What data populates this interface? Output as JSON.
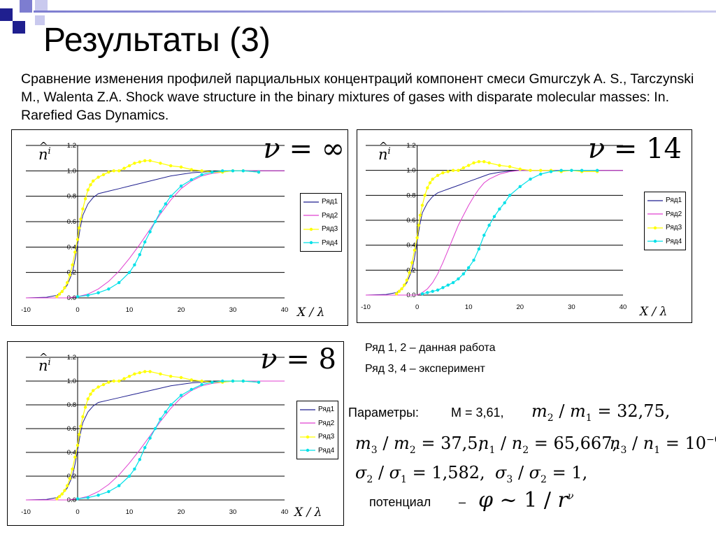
{
  "slide": {
    "title": "Результаты (3)",
    "subtitle": "Сравнение изменения профилей парциальных концентраций компонент смеси Gmurczyk A. S., Tarczynski M., Walenta Z.A.  Shock wave structure in the binary mixtures of gases with disparate molecular masses: In. Rarefied Gas Dynamics.",
    "accent_colors": [
      "#1f1f8f",
      "#7d7dd0",
      "#c9c9ee"
    ]
  },
  "notes": {
    "line1": "Ряд 1, 2  – данная работа",
    "line2": "Ряд 3, 4 – эксперимент"
  },
  "params": {
    "label": "Параметры:",
    "mass": "M = 3,61,",
    "potential_label": "потенциал",
    "dash": "–"
  },
  "chart_data": [
    {
      "type": "line",
      "title": "ν = ∞",
      "nu_symbol": "ν",
      "nu_value": "= ∞",
      "xlabel": "X / λ",
      "ylabel": "n i",
      "xlim": [
        -10,
        40
      ],
      "ylim": [
        0,
        1.2
      ],
      "x_ticks": [
        "-10",
        "0",
        "10",
        "20",
        "30",
        "40"
      ],
      "y_ticks": [
        "0.0",
        "0.2",
        "0.4",
        "0.6",
        "0.8",
        "1.0",
        "1.2"
      ],
      "grid": "horizontal",
      "legend": "right",
      "series": [
        {
          "name": "Ряд1",
          "color": "#1f1f8f",
          "marker": "none",
          "x": [
            -10,
            -6,
            -4,
            -3,
            -2,
            -1,
            -0.5,
            0,
            0.5,
            1,
            2,
            3,
            4,
            6,
            8,
            10,
            14,
            18,
            22,
            26,
            30,
            40
          ],
          "y": [
            0,
            0.005,
            0.02,
            0.05,
            0.1,
            0.2,
            0.3,
            0.42,
            0.55,
            0.65,
            0.74,
            0.79,
            0.82,
            0.84,
            0.86,
            0.88,
            0.92,
            0.96,
            0.985,
            0.995,
            1.0,
            1.0
          ]
        },
        {
          "name": "Ряд2",
          "color": "#e040d0",
          "marker": "none",
          "x": [
            -10,
            -2,
            0,
            2,
            4,
            6,
            8,
            10,
            12,
            14,
            16,
            18,
            20,
            22,
            24,
            26,
            28,
            30,
            34,
            40
          ],
          "y": [
            0,
            0,
            0.01,
            0.03,
            0.07,
            0.13,
            0.21,
            0.31,
            0.42,
            0.54,
            0.66,
            0.77,
            0.86,
            0.92,
            0.96,
            0.98,
            0.99,
            1.0,
            1.0,
            1.0
          ]
        },
        {
          "name": "Ряд3",
          "color": "#ffff00",
          "marker": "dot",
          "x": [
            -4,
            -3.5,
            -3,
            -2.5,
            -2,
            -1.5,
            -1,
            -0.5,
            0,
            0.3,
            0.6,
            1,
            1.5,
            2,
            2.5,
            3,
            4,
            5,
            6,
            7,
            8,
            9,
            10,
            11,
            12,
            13,
            14,
            16,
            18,
            20,
            22,
            24,
            26,
            28,
            30,
            32,
            35
          ],
          "y": [
            0.01,
            0.03,
            0.05,
            0.08,
            0.12,
            0.18,
            0.26,
            0.36,
            0.46,
            0.55,
            0.62,
            0.7,
            0.78,
            0.85,
            0.89,
            0.92,
            0.95,
            0.97,
            0.99,
            1.0,
            1.0,
            1.02,
            1.04,
            1.06,
            1.07,
            1.08,
            1.08,
            1.06,
            1.04,
            1.03,
            1.01,
            1.0,
            0.99,
            0.99,
            1.0,
            1.0,
            0.99
          ]
        },
        {
          "name": "Ряд4",
          "color": "#00e0e8",
          "marker": "dot",
          "x": [
            0,
            2,
            4,
            6,
            8,
            10,
            11,
            12,
            13,
            14,
            15,
            16,
            17,
            18,
            20,
            22,
            24,
            26,
            28,
            30,
            32,
            35
          ],
          "y": [
            0.01,
            0.02,
            0.04,
            0.07,
            0.12,
            0.2,
            0.26,
            0.34,
            0.44,
            0.52,
            0.6,
            0.68,
            0.74,
            0.8,
            0.88,
            0.93,
            0.97,
            0.99,
            1.0,
            1.0,
            1.0,
            0.99
          ]
        }
      ]
    },
    {
      "type": "line",
      "title": "ν = 14",
      "nu_symbol": "ν",
      "nu_value": "= 14",
      "xlabel": "X / λ",
      "ylabel": "n i",
      "xlim": [
        -10,
        40
      ],
      "ylim": [
        0,
        1.2
      ],
      "x_ticks": [
        "-10",
        "0",
        "10",
        "20",
        "30",
        "40"
      ],
      "y_ticks": [
        "0.0",
        "0.2",
        "0.4",
        "0.6",
        "0.8",
        "1.0",
        "1.2"
      ],
      "grid": "horizontal",
      "legend": "right",
      "series": [
        {
          "name": "Ряд1",
          "color": "#1f1f8f",
          "marker": "none",
          "x": [
            -10,
            -6,
            -4,
            -3,
            -2,
            -1,
            -0.5,
            0,
            0.5,
            1,
            2,
            3,
            4,
            6,
            8,
            10,
            12,
            14,
            16,
            18,
            20,
            24,
            30,
            40
          ],
          "y": [
            0,
            0.005,
            0.02,
            0.05,
            0.1,
            0.2,
            0.3,
            0.43,
            0.56,
            0.66,
            0.74,
            0.79,
            0.82,
            0.85,
            0.88,
            0.91,
            0.94,
            0.97,
            0.985,
            0.995,
            1.0,
            1.0,
            1.0,
            1.0
          ]
        },
        {
          "name": "Ряд2",
          "color": "#e040d0",
          "marker": "none",
          "x": [
            -10,
            0,
            1,
            2,
            3,
            4,
            5,
            6,
            7,
            8,
            9,
            10,
            11,
            12,
            13,
            14,
            16,
            18,
            20,
            22,
            26,
            30,
            40
          ],
          "y": [
            0,
            0,
            0.02,
            0.05,
            0.1,
            0.17,
            0.26,
            0.36,
            0.46,
            0.56,
            0.64,
            0.72,
            0.79,
            0.85,
            0.9,
            0.93,
            0.97,
            0.99,
            1.0,
            1.0,
            1.0,
            1.0,
            1.0
          ]
        },
        {
          "name": "Ряд3",
          "color": "#ffff00",
          "marker": "dot",
          "x": [
            -4,
            -3.5,
            -3,
            -2.5,
            -2,
            -1.5,
            -1,
            -0.5,
            0,
            0.3,
            0.6,
            1,
            1.5,
            2,
            2.5,
            3,
            4,
            5,
            6,
            7,
            8,
            9,
            10,
            11,
            12,
            13,
            14,
            16,
            18,
            20,
            22,
            24,
            26,
            28,
            30,
            32,
            35
          ],
          "y": [
            0.01,
            0.03,
            0.05,
            0.08,
            0.12,
            0.18,
            0.26,
            0.36,
            0.46,
            0.56,
            0.64,
            0.72,
            0.8,
            0.86,
            0.9,
            0.93,
            0.96,
            0.98,
            0.99,
            1.0,
            1.0,
            1.02,
            1.04,
            1.06,
            1.07,
            1.07,
            1.06,
            1.04,
            1.03,
            1.01,
            1.0,
            1.0,
            1.0,
            0.99,
            1.0,
            0.99,
            0.99
          ]
        },
        {
          "name": "Ряд4",
          "color": "#00e0e8",
          "marker": "dot",
          "x": [
            1,
            2,
            3,
            4,
            5,
            6,
            7,
            8,
            9,
            10,
            11,
            12,
            13,
            14,
            15,
            16,
            17,
            18,
            20,
            22,
            24,
            26,
            28,
            30,
            32,
            35
          ],
          "y": [
            0.01,
            0.02,
            0.03,
            0.04,
            0.06,
            0.08,
            0.1,
            0.13,
            0.17,
            0.22,
            0.28,
            0.37,
            0.48,
            0.56,
            0.63,
            0.69,
            0.74,
            0.8,
            0.87,
            0.93,
            0.97,
            0.99,
            1.0,
            1.0,
            1.0,
            1.0
          ]
        }
      ]
    },
    {
      "type": "line",
      "title": "ν = 8",
      "nu_symbol": "ν",
      "nu_value": "= 8",
      "xlabel": "X / λ",
      "ylabel": "n i",
      "xlim": [
        -10,
        40
      ],
      "ylim": [
        0,
        1.2
      ],
      "x_ticks": [
        "-10",
        "0",
        "10",
        "20",
        "30",
        "40"
      ],
      "y_ticks": [
        "0.0",
        "0.2",
        "0.4",
        "0.6",
        "0.8",
        "1.0",
        "1.2"
      ],
      "grid": "horizontal",
      "legend": "right",
      "series": [
        {
          "name": "Ряд1",
          "color": "#1f1f8f",
          "marker": "none",
          "x": [
            -10,
            -6,
            -4,
            -3,
            -2,
            -1,
            -0.5,
            0,
            0.5,
            1,
            2,
            3,
            4,
            6,
            8,
            10,
            14,
            18,
            22,
            26,
            30,
            40
          ],
          "y": [
            0,
            0.005,
            0.02,
            0.05,
            0.1,
            0.2,
            0.3,
            0.42,
            0.55,
            0.65,
            0.74,
            0.79,
            0.82,
            0.84,
            0.86,
            0.88,
            0.92,
            0.96,
            0.985,
            0.995,
            1.0,
            1.0
          ]
        },
        {
          "name": "Ряд2",
          "color": "#e040d0",
          "marker": "none",
          "x": [
            -10,
            -2,
            0,
            2,
            4,
            6,
            8,
            10,
            12,
            14,
            16,
            18,
            20,
            22,
            24,
            26,
            28,
            30,
            34,
            40
          ],
          "y": [
            0,
            0,
            0.01,
            0.03,
            0.07,
            0.13,
            0.21,
            0.31,
            0.42,
            0.54,
            0.66,
            0.77,
            0.86,
            0.92,
            0.96,
            0.98,
            0.99,
            1.0,
            1.0,
            1.0
          ]
        },
        {
          "name": "Ряд3",
          "color": "#ffff00",
          "marker": "dot",
          "x": [
            -4,
            -3.5,
            -3,
            -2.5,
            -2,
            -1.5,
            -1,
            -0.5,
            0,
            0.3,
            0.6,
            1,
            1.5,
            2,
            2.5,
            3,
            4,
            5,
            6,
            7,
            8,
            9,
            10,
            11,
            12,
            13,
            14,
            16,
            18,
            20,
            22,
            24,
            26,
            28,
            30,
            32,
            35
          ],
          "y": [
            0.01,
            0.03,
            0.05,
            0.08,
            0.12,
            0.18,
            0.26,
            0.36,
            0.46,
            0.55,
            0.62,
            0.7,
            0.78,
            0.85,
            0.89,
            0.92,
            0.95,
            0.97,
            0.99,
            1.0,
            1.0,
            1.02,
            1.04,
            1.06,
            1.07,
            1.08,
            1.08,
            1.06,
            1.04,
            1.03,
            1.01,
            1.0,
            0.99,
            0.99,
            1.0,
            1.0,
            0.99
          ]
        },
        {
          "name": "Ряд4",
          "color": "#00e0e8",
          "marker": "dot",
          "x": [
            0,
            2,
            4,
            6,
            8,
            10,
            11,
            12,
            13,
            14,
            15,
            16,
            17,
            18,
            20,
            22,
            24,
            26,
            28,
            30,
            32,
            35
          ],
          "y": [
            0.01,
            0.02,
            0.04,
            0.07,
            0.12,
            0.2,
            0.26,
            0.34,
            0.44,
            0.52,
            0.6,
            0.68,
            0.74,
            0.8,
            0.88,
            0.93,
            0.97,
            0.99,
            1.0,
            1.0,
            1.0,
            0.99
          ]
        }
      ]
    }
  ]
}
